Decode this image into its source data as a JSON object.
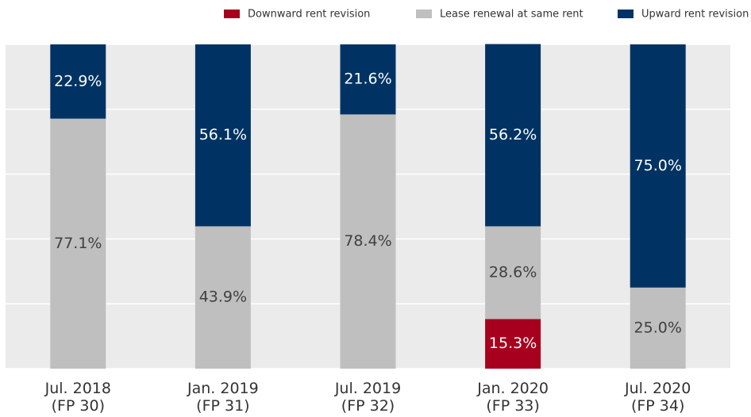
{
  "chart_data": {
    "type": "stacked_bar",
    "categories": [
      "Jul. 2018\n(FP 30)",
      "Jan. 2019\n(FP 31)",
      "Jul. 2019\n(FP 32)",
      "Jan. 2020\n(FP 33)",
      "Jul. 2020\n(FP 34)"
    ],
    "series": [
      {
        "name": "Downward rent revision",
        "color": "#a6001e",
        "label_color": "#ffffff",
        "values": [
          0,
          0,
          0,
          15.3,
          0
        ],
        "value_labels": [
          null,
          null,
          null,
          "15.3%",
          null
        ]
      },
      {
        "name": "Lease renewal at same rent",
        "color": "#bfbfbf",
        "label_color": "#404040",
        "values": [
          77.1,
          43.9,
          78.4,
          28.6,
          25.0
        ],
        "value_labels": [
          "77.1%",
          "43.9%",
          "78.4%",
          "28.6%",
          "25.0%"
        ]
      },
      {
        "name": "Upward rent revision",
        "color": "#003363",
        "label_color": "#ffffff",
        "values": [
          22.9,
          56.1,
          21.6,
          56.2,
          75.0
        ],
        "value_labels": [
          "22.9%",
          "56.1%",
          "21.6%",
          "56.2%",
          "75.0%"
        ]
      }
    ],
    "ylim": [
      0,
      100
    ],
    "yticks": [
      0,
      20,
      40,
      60,
      80,
      100
    ],
    "grid": true,
    "legend": "top-right"
  }
}
